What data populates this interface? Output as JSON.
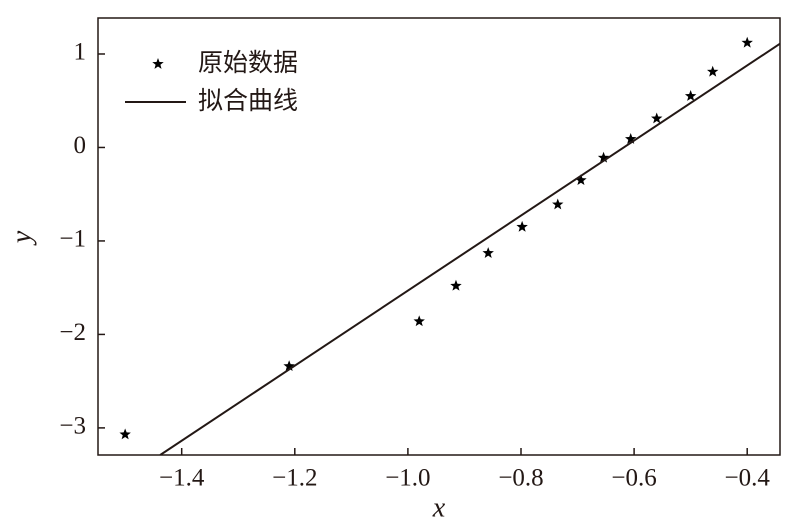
{
  "chart_data": {
    "type": "scatter",
    "xlabel": "x",
    "ylabel": "y",
    "xlim": [
      -1.548,
      -0.342
    ],
    "ylim": [
      -3.29,
      1.385
    ],
    "xticks": [
      {
        "value": -1.4,
        "label": "−1.4"
      },
      {
        "value": -1.2,
        "label": "−1.2"
      },
      {
        "value": -1.0,
        "label": "−1.0"
      },
      {
        "value": -0.8,
        "label": "−0.8"
      },
      {
        "value": -0.6,
        "label": "−0.6"
      },
      {
        "value": -0.4,
        "label": "−0.4"
      }
    ],
    "yticks": [
      {
        "value": -3,
        "label": "−3"
      },
      {
        "value": -2,
        "label": "−2"
      },
      {
        "value": -1,
        "label": "−1"
      },
      0,
      1
    ],
    "legend": "upper left",
    "series": [
      {
        "name": "原始数据",
        "type": "scatter",
        "color": "#000000",
        "x": [
          -1.5,
          -1.21,
          -0.98,
          -0.915,
          -0.858,
          -0.798,
          -0.735,
          -0.694,
          -0.654,
          -0.606,
          -0.56,
          -0.5,
          -0.461,
          -0.4
        ],
        "values": [
          -3.07,
          -2.34,
          -1.86,
          -1.48,
          -1.13,
          -0.85,
          -0.61,
          -0.35,
          -0.11,
          0.09,
          0.31,
          0.55,
          0.81,
          1.12
        ]
      },
      {
        "name": "拟合曲线",
        "type": "line",
        "color": "#231815",
        "x": [
          -1.438,
          -0.342
        ],
        "values": [
          -3.29,
          1.11
        ]
      }
    ]
  }
}
